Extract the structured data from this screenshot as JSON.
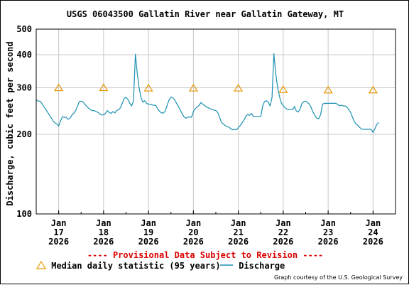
{
  "chart_data": {
    "type": "line",
    "title": "USGS 06043500 Gallatin River near Gallatin Gateway, MT",
    "ylabel": "Discharge, cubic feet per second",
    "xlabel": "",
    "y_scale": "log",
    "ylim": [
      100,
      500
    ],
    "y_ticks": [
      100,
      200,
      300,
      400,
      500
    ],
    "x_range_hours": [
      -12,
      180
    ],
    "x_ticks": [
      {
        "t": 0,
        "line1": "Jan",
        "line2": "17",
        "line3": "2026"
      },
      {
        "t": 24,
        "line1": "Jan",
        "line2": "18",
        "line3": "2026"
      },
      {
        "t": 48,
        "line1": "Jan",
        "line2": "19",
        "line3": "2026"
      },
      {
        "t": 72,
        "line1": "Jan",
        "line2": "20",
        "line3": "2026"
      },
      {
        "t": 96,
        "line1": "Jan",
        "line2": "21",
        "line3": "2026"
      },
      {
        "t": 120,
        "line1": "Jan",
        "line2": "22",
        "line3": "2026"
      },
      {
        "t": 144,
        "line1": "Jan",
        "line2": "23",
        "line3": "2026"
      },
      {
        "t": 168,
        "line1": "Jan",
        "line2": "24",
        "line3": "2026"
      }
    ],
    "grid": true,
    "series": [
      {
        "name": "Median daily statistic (95 years)",
        "marker": "triangle",
        "color": "#e69500",
        "points": [
          [
            0,
            300
          ],
          [
            24,
            300
          ],
          [
            48,
            299
          ],
          [
            72,
            299
          ],
          [
            96,
            299
          ],
          [
            120,
            295
          ],
          [
            144,
            294
          ],
          [
            168,
            294
          ]
        ]
      },
      {
        "name": "Discharge",
        "color": "#1a8fb0",
        "points": [
          [
            -12,
            270
          ],
          [
            -11,
            267
          ],
          [
            -10,
            267
          ],
          [
            -9,
            262
          ],
          [
            -8,
            255
          ],
          [
            -7,
            249
          ],
          [
            -6,
            243
          ],
          [
            -5,
            237
          ],
          [
            -4,
            231
          ],
          [
            -3,
            225
          ],
          [
            -2,
            221
          ],
          [
            -1,
            219
          ],
          [
            0,
            215
          ],
          [
            1,
            225
          ],
          [
            2,
            233
          ],
          [
            3,
            232
          ],
          [
            4,
            232
          ],
          [
            5,
            228
          ],
          [
            6,
            230
          ],
          [
            7,
            236
          ],
          [
            8,
            240
          ],
          [
            9,
            245
          ],
          [
            10,
            255
          ],
          [
            11,
            266
          ],
          [
            12,
            267
          ],
          [
            13,
            265
          ],
          [
            14,
            260
          ],
          [
            15,
            255
          ],
          [
            16,
            251
          ],
          [
            17,
            248
          ],
          [
            18,
            246
          ],
          [
            19,
            246
          ],
          [
            20,
            244
          ],
          [
            21,
            242
          ],
          [
            22,
            239
          ],
          [
            23,
            237
          ],
          [
            24,
            237
          ],
          [
            25,
            240
          ],
          [
            26,
            246
          ],
          [
            27,
            242
          ],
          [
            28,
            240
          ],
          [
            29,
            244
          ],
          [
            30,
            241
          ],
          [
            31,
            246
          ],
          [
            32,
            248
          ],
          [
            33,
            252
          ],
          [
            34,
            262
          ],
          [
            35,
            274
          ],
          [
            36,
            276
          ],
          [
            37,
            271
          ],
          [
            38,
            262
          ],
          [
            39,
            256
          ],
          [
            40,
            268
          ],
          [
            41,
            402
          ],
          [
            42,
            340
          ],
          [
            43,
            300
          ],
          [
            44,
            275
          ],
          [
            45,
            265
          ],
          [
            46,
            268
          ],
          [
            47,
            262
          ],
          [
            48,
            260
          ],
          [
            49,
            260
          ],
          [
            50,
            258
          ],
          [
            51,
            258
          ],
          [
            52,
            257
          ],
          [
            53,
            249
          ],
          [
            54,
            244
          ],
          [
            55,
            241
          ],
          [
            56,
            241
          ],
          [
            57,
            245
          ],
          [
            58,
            258
          ],
          [
            59,
            270
          ],
          [
            60,
            277
          ],
          [
            61,
            275
          ],
          [
            62,
            270
          ],
          [
            63,
            262
          ],
          [
            64,
            255
          ],
          [
            65,
            247
          ],
          [
            66,
            239
          ],
          [
            67,
            233
          ],
          [
            68,
            230
          ],
          [
            69,
            232
          ],
          [
            70,
            233
          ],
          [
            71,
            232
          ],
          [
            72,
            244
          ],
          [
            73,
            250
          ],
          [
            74,
            254
          ],
          [
            75,
            257
          ],
          [
            76,
            264
          ],
          [
            77,
            260
          ],
          [
            78,
            257
          ],
          [
            79,
            254
          ],
          [
            80,
            252
          ],
          [
            81,
            250
          ],
          [
            82,
            248
          ],
          [
            83,
            247
          ],
          [
            84,
            246
          ],
          [
            85,
            242
          ],
          [
            86,
            232
          ],
          [
            87,
            222
          ],
          [
            88,
            219
          ],
          [
            89,
            216
          ],
          [
            90,
            214
          ],
          [
            91,
            213
          ],
          [
            92,
            210
          ],
          [
            93,
            208
          ],
          [
            94,
            209
          ],
          [
            95,
            208
          ],
          [
            96,
            212
          ],
          [
            97,
            216
          ],
          [
            98,
            221
          ],
          [
            99,
            226
          ],
          [
            100,
            234
          ],
          [
            101,
            238
          ],
          [
            102,
            236
          ],
          [
            103,
            240
          ],
          [
            104,
            234
          ],
          [
            105,
            234
          ],
          [
            106,
            234
          ],
          [
            107,
            234
          ],
          [
            108,
            234
          ],
          [
            109,
            256
          ],
          [
            110,
            266
          ],
          [
            111,
            268
          ],
          [
            112,
            265
          ],
          [
            113,
            256
          ],
          [
            114,
            276
          ],
          [
            115,
            404
          ],
          [
            116,
            340
          ],
          [
            117,
            300
          ],
          [
            118,
            278
          ],
          [
            119,
            263
          ],
          [
            120,
            257
          ],
          [
            121,
            252
          ],
          [
            122,
            249
          ],
          [
            123,
            248
          ],
          [
            124,
            248
          ],
          [
            125,
            248
          ],
          [
            126,
            255
          ],
          [
            127,
            245
          ],
          [
            128,
            243
          ],
          [
            129,
            249
          ],
          [
            130,
            262
          ],
          [
            131,
            266
          ],
          [
            132,
            267
          ],
          [
            133,
            264
          ],
          [
            134,
            260
          ],
          [
            135,
            252
          ],
          [
            136,
            242
          ],
          [
            137,
            235
          ],
          [
            138,
            230
          ],
          [
            139,
            229
          ],
          [
            140,
            238
          ],
          [
            141,
            260
          ],
          [
            142,
            262
          ],
          [
            143,
            262
          ],
          [
            144,
            262
          ],
          [
            145,
            262
          ],
          [
            146,
            262
          ],
          [
            147,
            262
          ],
          [
            148,
            262
          ],
          [
            149,
            260
          ],
          [
            150,
            256
          ],
          [
            151,
            258
          ],
          [
            152,
            256
          ],
          [
            153,
            256
          ],
          [
            154,
            254
          ],
          [
            155,
            248
          ],
          [
            156,
            242
          ],
          [
            157,
            232
          ],
          [
            158,
            224
          ],
          [
            159,
            218
          ],
          [
            160,
            216
          ],
          [
            161,
            212
          ],
          [
            162,
            209
          ],
          [
            163,
            209
          ],
          [
            164,
            209
          ],
          [
            165,
            209
          ],
          [
            166,
            209
          ],
          [
            167,
            209
          ],
          [
            168,
            203
          ],
          [
            169,
            210
          ],
          [
            170,
            218
          ],
          [
            171,
            222
          ]
        ]
      }
    ]
  },
  "footer": {
    "provisional": "---- Provisional Data Subject to Revision ----",
    "legend_median": "Median daily statistic (95 years)",
    "legend_discharge": "Discharge",
    "courtesy": "Graph courtesy of the U.S. Geological Survey"
  }
}
